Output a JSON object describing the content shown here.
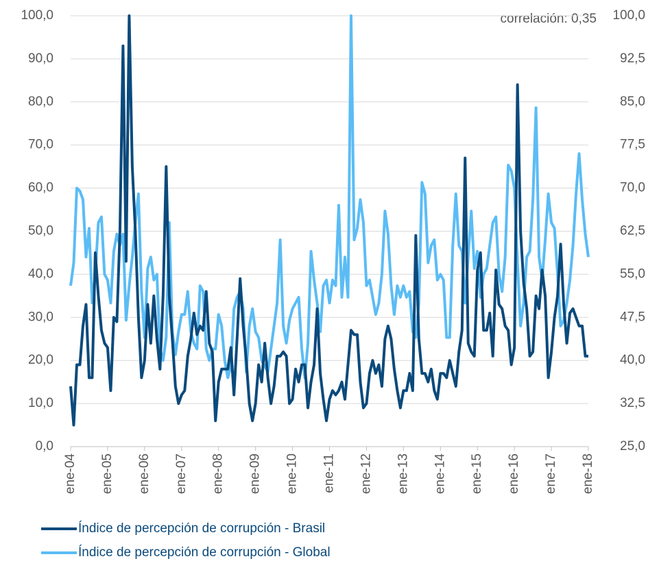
{
  "chart_data": {
    "type": "line",
    "annotation": "correlación: 0,35",
    "categories": [
      "ene-04",
      null,
      null,
      null,
      null,
      null,
      null,
      null,
      null,
      null,
      null,
      null,
      "ene-05",
      null,
      null,
      null,
      null,
      null,
      null,
      null,
      null,
      null,
      null,
      null,
      "ene-06",
      null,
      null,
      null,
      null,
      null,
      null,
      null,
      null,
      null,
      null,
      null,
      "ene-07",
      null,
      null,
      null,
      null,
      null,
      null,
      null,
      null,
      null,
      null,
      null,
      "ene-08",
      null,
      null,
      null,
      null,
      null,
      null,
      null,
      null,
      null,
      null,
      null,
      "ene-09",
      null,
      null,
      null,
      null,
      null,
      null,
      null,
      null,
      null,
      null,
      null,
      "ene-10",
      null,
      null,
      null,
      null,
      null,
      null,
      null,
      null,
      null,
      null,
      null,
      "ene-11",
      null,
      null,
      null,
      null,
      null,
      null,
      null,
      null,
      null,
      null,
      null,
      "ene-12",
      null,
      null,
      null,
      null,
      null,
      null,
      null,
      null,
      null,
      null,
      null,
      "ene-13",
      null,
      null,
      null,
      null,
      null,
      null,
      null,
      null,
      null,
      null,
      null,
      "ene-14",
      null,
      null,
      null,
      null,
      null,
      null,
      null,
      null,
      null,
      null,
      null,
      "ene-15",
      null,
      null,
      null,
      null,
      null,
      null,
      null,
      null,
      null,
      null,
      null,
      "ene-16",
      null,
      null,
      null,
      null,
      null,
      null,
      null,
      null,
      null,
      null,
      null,
      "ene-17",
      null,
      null,
      null,
      null,
      null,
      null,
      null,
      null,
      null,
      null,
      null,
      "ene-18"
    ],
    "series": [
      {
        "name": "Índice de percepción de corrupción - Brasil",
        "color": "#0b4a7c",
        "values": [
          14,
          5,
          19,
          19,
          28,
          33,
          16,
          16,
          45,
          35,
          27,
          24,
          23,
          13,
          30,
          29,
          50,
          93,
          43,
          100,
          65,
          50,
          30,
          16,
          20,
          33,
          24,
          35,
          25,
          18,
          35,
          65,
          35,
          25,
          14,
          10,
          12,
          13,
          21,
          25,
          31,
          26,
          28,
          27,
          36,
          24,
          22,
          6,
          15,
          18,
          18,
          18,
          23,
          12,
          25,
          39,
          28,
          20,
          10,
          6,
          10,
          19,
          15,
          24,
          16,
          10,
          14,
          21,
          21,
          22,
          21,
          10,
          11,
          18,
          15,
          19,
          19,
          9,
          15,
          19,
          32,
          17,
          11,
          6,
          11,
          13,
          12,
          13,
          15,
          11,
          19,
          27,
          26,
          26,
          15,
          9,
          10,
          17,
          20,
          17,
          19,
          14,
          25,
          28,
          25,
          18,
          13,
          9,
          13,
          13,
          17,
          13,
          49,
          25,
          17,
          17,
          15,
          18,
          13,
          11,
          17,
          17,
          16,
          20,
          17,
          14,
          22,
          27,
          67,
          24,
          22,
          21,
          41,
          45,
          27,
          27,
          31,
          21,
          41,
          33,
          32,
          28,
          27,
          19,
          23,
          84,
          50,
          38,
          32,
          21,
          22,
          35,
          32,
          41,
          35,
          16,
          22,
          30,
          35,
          47,
          33,
          24,
          31,
          32,
          30,
          28,
          28,
          21,
          21
        ]
      },
      {
        "name": "Índice de percepción de corrupción - Global",
        "color": "#5bbcf5",
        "axis": "y2",
        "values": [
          53,
          57,
          70,
          69.5,
          68,
          58,
          63,
          50,
          55,
          64,
          65,
          55,
          54,
          50,
          59,
          62,
          60,
          62,
          47,
          53,
          58,
          64,
          69,
          52,
          44,
          56,
          58,
          54,
          55,
          42,
          40,
          44,
          64,
          45,
          41,
          45,
          48,
          48,
          52,
          45,
          43,
          42,
          53,
          52,
          42,
          40,
          42,
          42,
          48,
          46,
          40,
          37,
          39,
          49,
          51,
          52,
          49,
          38,
          46,
          49,
          45,
          44,
          40,
          39,
          38,
          42,
          46,
          50,
          61,
          46,
          43,
          47,
          49,
          50,
          51,
          42,
          37,
          43,
          59,
          54,
          50,
          45,
          53,
          54,
          50,
          54,
          53,
          67,
          51,
          58,
          51,
          100,
          61,
          63,
          68,
          64,
          53,
          54,
          51,
          48,
          50,
          55,
          66,
          62,
          53,
          48,
          53,
          51,
          53,
          51,
          52,
          45,
          44,
          50,
          71,
          69,
          57,
          60,
          61,
          54,
          55,
          54,
          44,
          44,
          60,
          69,
          60,
          59,
          50,
          58,
          66,
          56,
          59,
          51,
          55,
          56,
          60,
          64,
          65,
          55,
          52,
          58,
          74,
          73,
          70,
          57,
          46,
          50,
          58,
          59,
          68,
          84,
          58,
          54,
          61,
          69,
          64,
          63,
          55,
          46,
          47,
          50,
          54,
          60,
          69,
          76,
          68,
          62,
          58
        ]
      }
    ],
    "ylim": [
      0,
      100
    ],
    "yticks": [
      {
        "value": 0,
        "label": "0,0"
      },
      {
        "value": 10,
        "label": "10,0"
      },
      {
        "value": 20,
        "label": "20,0"
      },
      {
        "value": 30,
        "label": "30,0"
      },
      {
        "value": 40,
        "label": "40,0"
      },
      {
        "value": 50,
        "label": "50,0"
      },
      {
        "value": 60,
        "label": "60,0"
      },
      {
        "value": 70,
        "label": "70,0"
      },
      {
        "value": 80,
        "label": "80,0"
      },
      {
        "value": 90,
        "label": "90,0"
      },
      {
        "value": 100,
        "label": "100,0"
      }
    ],
    "y2lim": [
      25,
      100
    ],
    "y2ticks": [
      {
        "value": 25,
        "label": "25,0"
      },
      {
        "value": 32.5,
        "label": "32,5"
      },
      {
        "value": 40,
        "label": "40,0"
      },
      {
        "value": 47.5,
        "label": "47,5"
      },
      {
        "value": 55,
        "label": "55,0"
      },
      {
        "value": 62.5,
        "label": "62,5"
      },
      {
        "value": 70,
        "label": "70,0"
      },
      {
        "value": 77.5,
        "label": "77,5"
      },
      {
        "value": 85,
        "label": "85,0"
      },
      {
        "value": 92.5,
        "label": "92,5"
      },
      {
        "value": 100,
        "label": "100,0"
      }
    ],
    "grid": true
  }
}
